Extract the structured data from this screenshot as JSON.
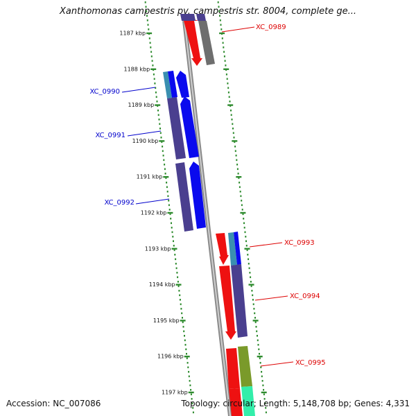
{
  "title": "Xanthomonas campestris pv. campestris str. 8004, complete ge...",
  "footer": {
    "accession": "Accession: NC_007086",
    "summary": "Topology: circular; Length: 5,148,708 bp; Genes: 4,331"
  },
  "colors": {
    "backbone": "#8a8a8a",
    "ruler": "#2e8b2e",
    "forward_gene": "#0a0aee",
    "forward_cds": "#4a3f8f",
    "reverse_gene": "#ee1111",
    "gray_gene": "#6e6e6e",
    "teal_segment": "#3a8fb0",
    "olive_segment": "#7a9a2a",
    "mint_segment": "#33eeaa",
    "left_label": "#0000cc",
    "right_label": "#dd0000"
  },
  "ruler_ticks": [
    "1187 kbp",
    "1188 kbp",
    "1189 kbp",
    "1190 kbp",
    "1191 kbp",
    "1192 kbp",
    "1193 kbp",
    "1194 kbp",
    "1195 kbp",
    "1196 kbp",
    "1197 kbp"
  ],
  "gene_labels": {
    "left": [
      "XC_0990",
      "XC_0991",
      "XC_0992"
    ],
    "right": [
      "XC_0989",
      "XC_0993",
      "XC_0994",
      "XC_0995"
    ]
  }
}
